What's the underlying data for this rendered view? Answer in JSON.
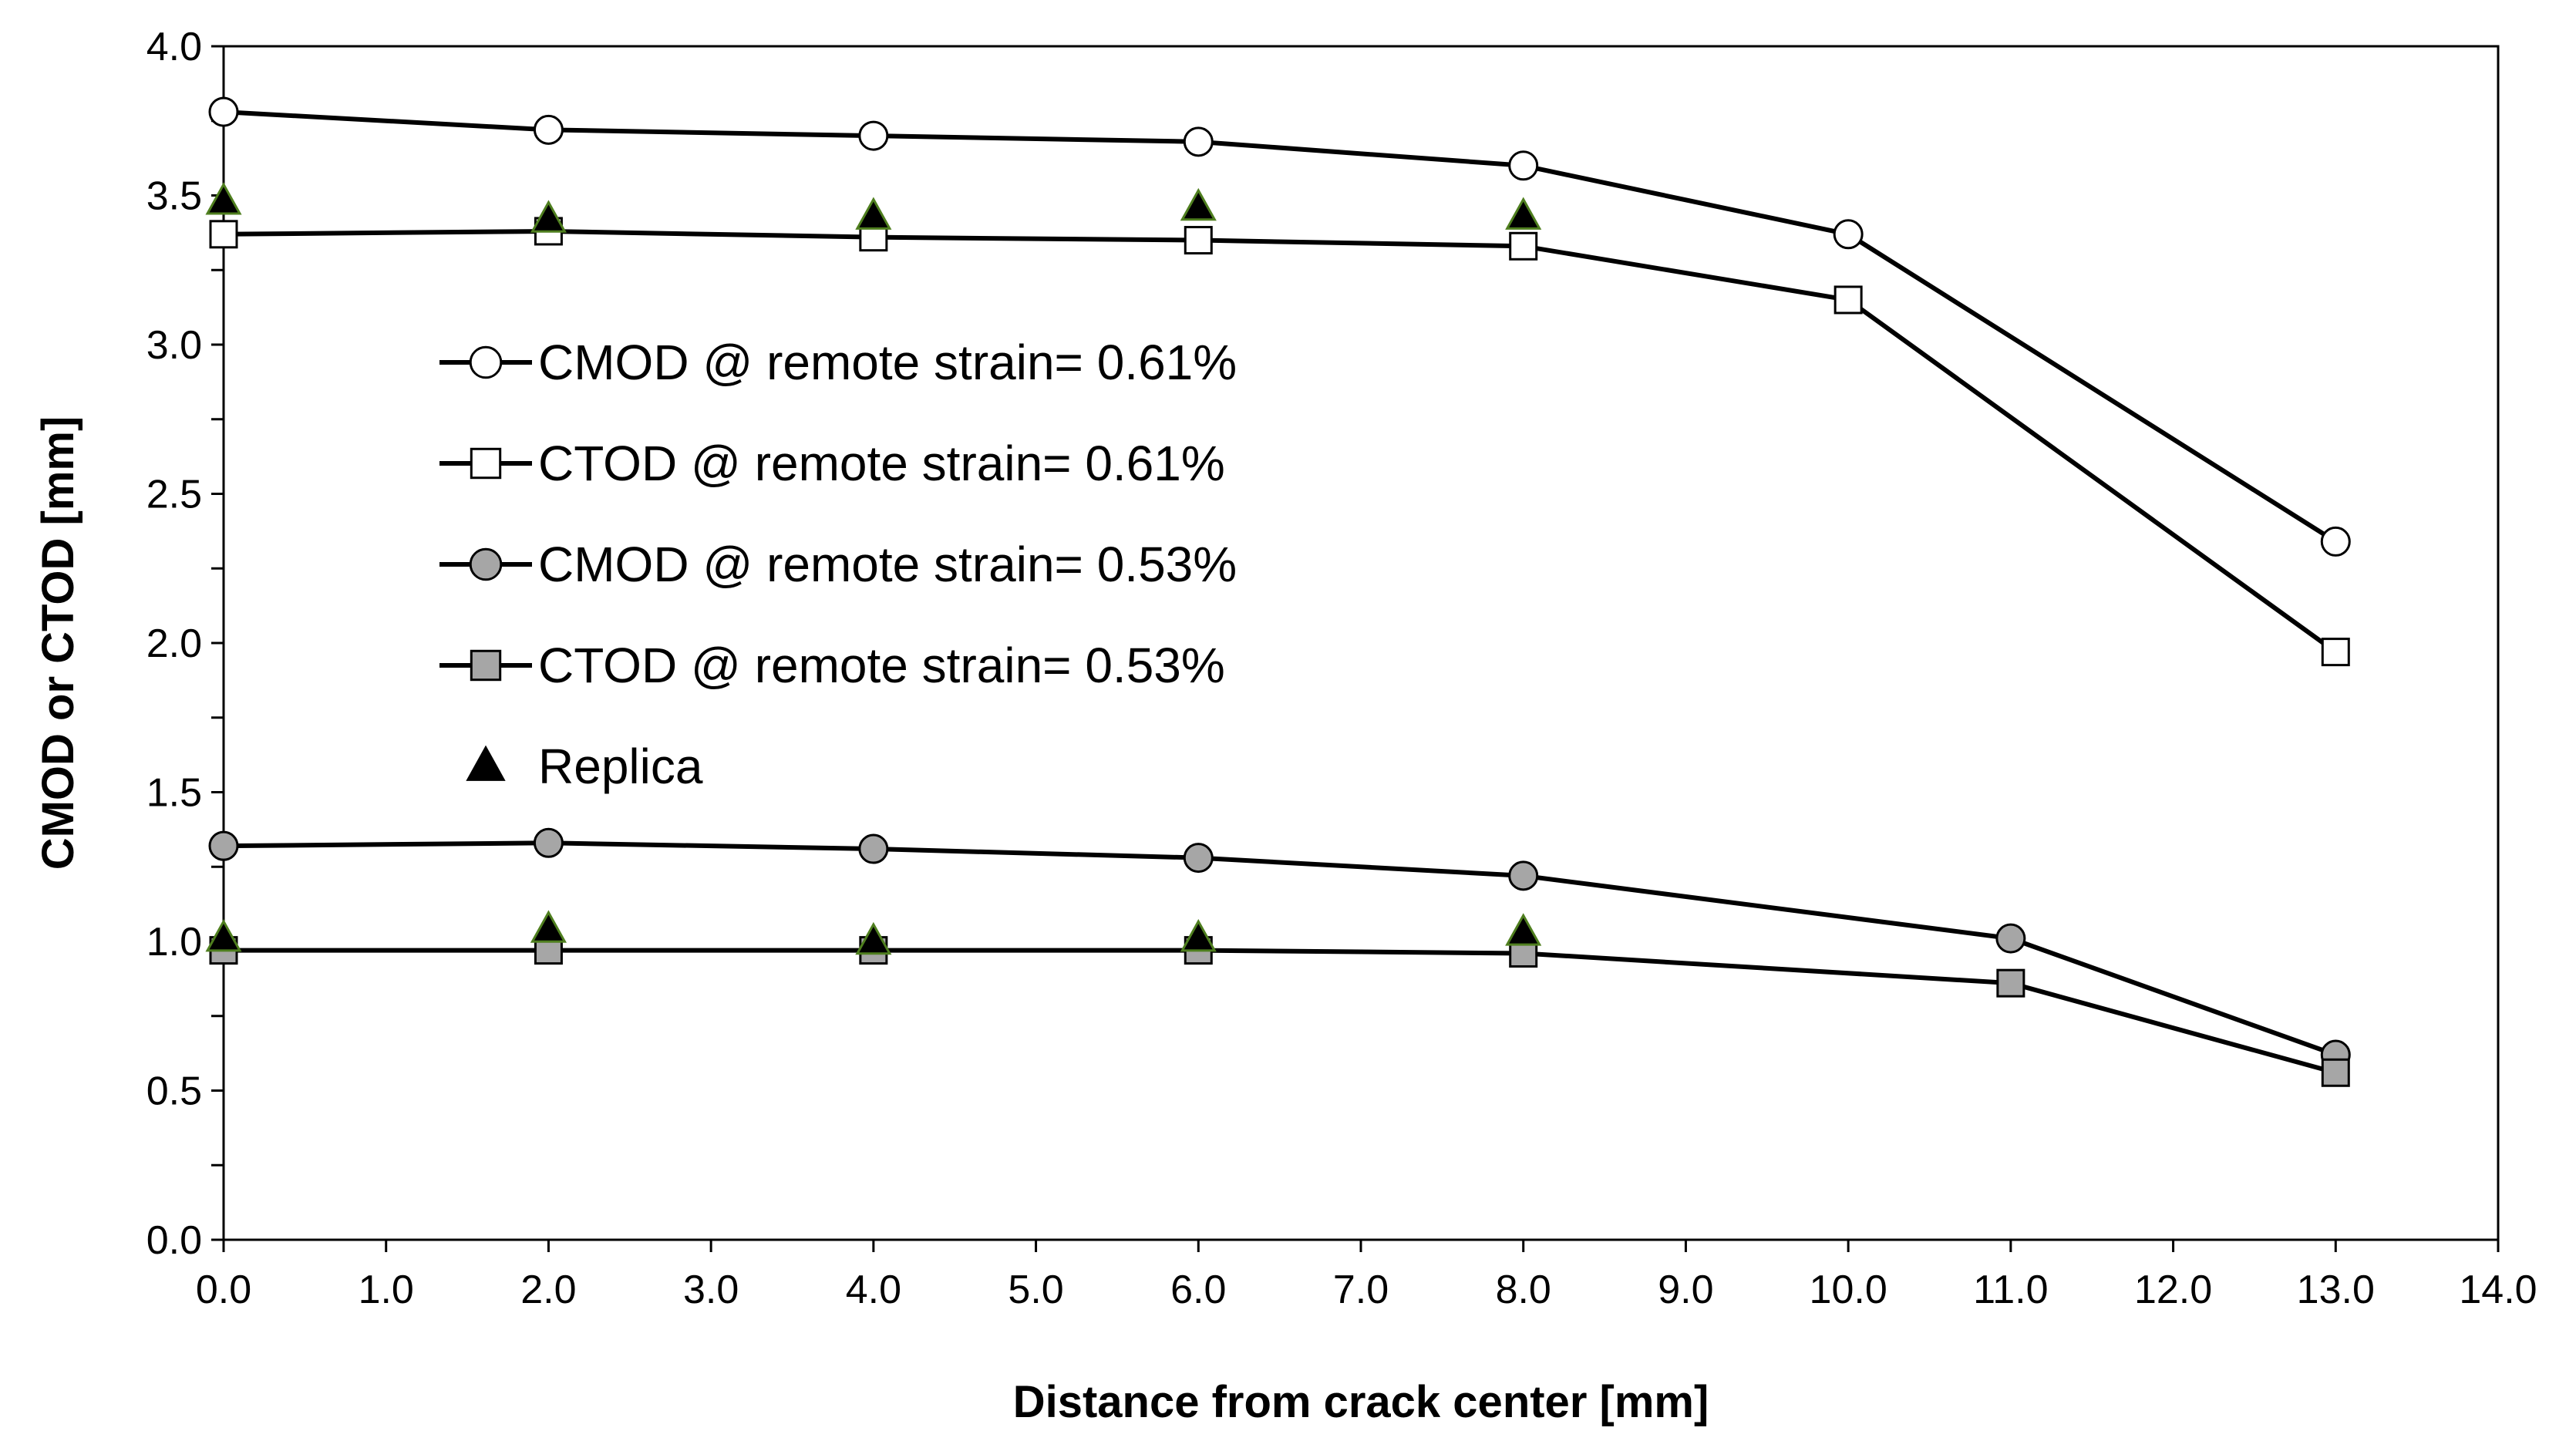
{
  "chart_data": {
    "type": "line",
    "title": "",
    "xlabel": "Distance from crack center [mm]",
    "ylabel": "CMOD or CTOD [mm]",
    "xlim": [
      0,
      14
    ],
    "ylim": [
      0,
      4
    ],
    "xticks": [
      "0.0",
      "1.0",
      "2.0",
      "3.0",
      "4.0",
      "5.0",
      "6.0",
      "7.0",
      "8.0",
      "9.0",
      "10.0",
      "11.0",
      "12.0",
      "13.0",
      "14.0"
    ],
    "yticks": [
      "0.0",
      "0.5",
      "1.0",
      "1.5",
      "2.0",
      "2.5",
      "3.0",
      "3.5",
      "4.0"
    ],
    "grid": false,
    "legend_position": "center-left",
    "series": [
      {
        "name": "CMOD @ remote strain= 0.61%",
        "marker": "circle",
        "fill": "#ffffff",
        "line": true,
        "x": [
          0,
          2,
          4,
          6,
          8,
          10,
          13
        ],
        "y": [
          3.78,
          3.72,
          3.7,
          3.68,
          3.6,
          3.37,
          2.34
        ]
      },
      {
        "name": "CTOD @ remote strain= 0.61%",
        "marker": "square",
        "fill": "#ffffff",
        "line": true,
        "x": [
          0,
          2,
          4,
          6,
          8,
          10,
          13
        ],
        "y": [
          3.37,
          3.38,
          3.36,
          3.35,
          3.33,
          3.15,
          1.97
        ]
      },
      {
        "name": "CMOD @ remote strain= 0.53%",
        "marker": "circle",
        "fill": "#a6a6a6",
        "line": true,
        "x": [
          0,
          2,
          4,
          6,
          8,
          11,
          13
        ],
        "y": [
          1.32,
          1.33,
          1.31,
          1.28,
          1.22,
          1.01,
          0.62
        ]
      },
      {
        "name": "CTOD @ remote strain= 0.53%",
        "marker": "square",
        "fill": "#a6a6a6",
        "line": true,
        "x": [
          0,
          2,
          4,
          6,
          8,
          11,
          13
        ],
        "y": [
          0.97,
          0.97,
          0.97,
          0.97,
          0.96,
          0.86,
          0.56
        ]
      },
      {
        "name": "Replica",
        "marker": "triangle",
        "fill": "#000000",
        "line": false,
        "x": [
          0,
          2,
          4,
          6,
          8,
          0,
          2,
          4,
          6,
          8
        ],
        "y": [
          3.48,
          3.42,
          3.43,
          3.46,
          3.43,
          1.01,
          1.04,
          1.0,
          1.01,
          1.03
        ]
      }
    ]
  }
}
